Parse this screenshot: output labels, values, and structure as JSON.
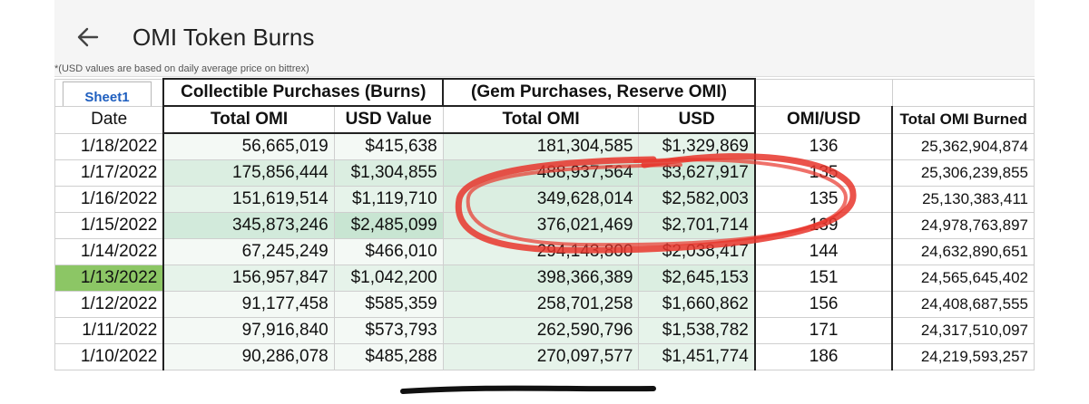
{
  "app": {
    "title": "OMI Token Burns",
    "back_icon": "arrow-left-icon",
    "cutoff_note": "*(USD values are based on daily average price on bittrex)"
  },
  "sheet": {
    "tab_label": "Sheet1",
    "group_headers": {
      "collectible": "Collectible Purchases (Burns)",
      "gem": "(Gem Purchases, Reserve OMI)"
    },
    "columns": [
      "Date",
      "Total OMI",
      "USD Value",
      "Total OMI",
      "USD",
      "OMI/USD",
      "Total OMI Burned"
    ],
    "rows": [
      {
        "date": "1/18/2022",
        "c_omi": "56,665,019",
        "c_usd": "$415,638",
        "g_omi": "181,304,585",
        "g_usd": "$1,329,869",
        "rate": "136",
        "total": "25,362,904,874"
      },
      {
        "date": "1/17/2022",
        "c_omi": "175,856,444",
        "c_usd": "$1,304,855",
        "g_omi": "488,937,564",
        "g_usd": "$3,627,917",
        "rate": "135",
        "total": "25,306,239,855"
      },
      {
        "date": "1/16/2022",
        "c_omi": "151,619,514",
        "c_usd": "$1,119,710",
        "g_omi": "349,628,014",
        "g_usd": "$2,582,003",
        "rate": "135",
        "total": "25,130,383,411"
      },
      {
        "date": "1/15/2022",
        "c_omi": "345,873,246",
        "c_usd": "$2,485,099",
        "g_omi": "376,021,469",
        "g_usd": "$2,701,714",
        "rate": "139",
        "total": "24,978,763,897"
      },
      {
        "date": "1/14/2022",
        "c_omi": "67,245,249",
        "c_usd": "$466,010",
        "g_omi": "294,143,800",
        "g_usd": "$2,038,417",
        "rate": "144",
        "total": "24,632,890,651"
      },
      {
        "date": "1/13/2022",
        "c_omi": "156,957,847",
        "c_usd": "$1,042,200",
        "g_omi": "398,366,389",
        "g_usd": "$2,645,153",
        "rate": "151",
        "total": "24,565,645,402"
      },
      {
        "date": "1/12/2022",
        "c_omi": "91,177,458",
        "c_usd": "$585,359",
        "g_omi": "258,701,258",
        "g_usd": "$1,660,862",
        "rate": "156",
        "total": "24,408,687,555"
      },
      {
        "date": "1/11/2022",
        "c_omi": "97,916,840",
        "c_usd": "$573,793",
        "g_omi": "262,590,796",
        "g_usd": "$1,538,782",
        "rate": "171",
        "total": "24,317,510,097"
      },
      {
        "date": "1/10/2022",
        "c_omi": "90,286,078",
        "c_usd": "$485,288",
        "g_omi": "270,097,577",
        "g_usd": "$1,451,774",
        "rate": "186",
        "total": "24,219,593,257"
      }
    ],
    "selected_cell": "1/13/2022"
  },
  "annotation": {
    "circle_color": "#e8352b",
    "scribble_color": "#111111"
  }
}
